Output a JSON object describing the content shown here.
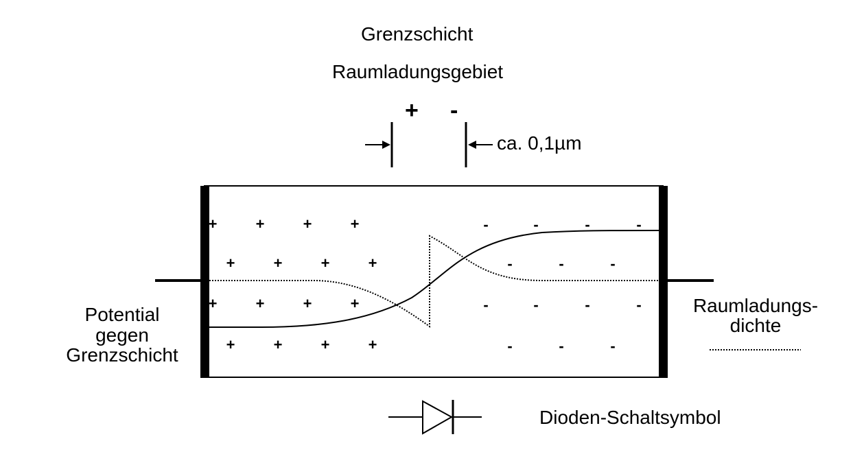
{
  "labels": {
    "grenzschicht": "Grenzschicht",
    "raumladungsgebiet": "Raumladungsgebiet",
    "plus": "+",
    "minus": "-",
    "width": "ca. 0,1µm",
    "potential_line1": "Potential",
    "potential_line2": "gegen",
    "potential_line3": "Grenzschicht",
    "density_line1": "Raumladungs-",
    "density_line2": "dichte",
    "diode_symbol": "Dioden-Schaltsymbol"
  },
  "charges": {
    "p_side": "+",
    "n_side": "-"
  }
}
